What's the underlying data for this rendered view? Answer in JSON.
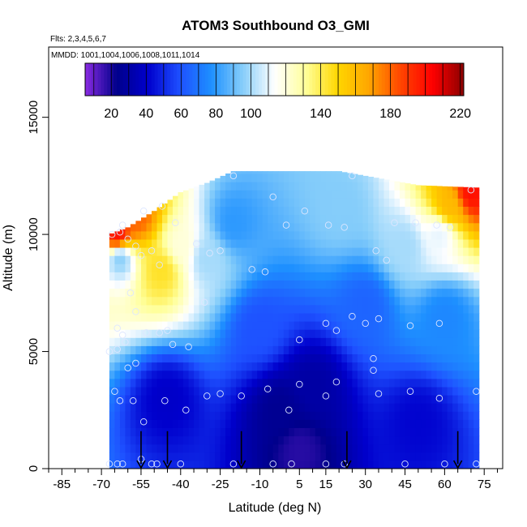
{
  "chart_data": {
    "type": "heatmap",
    "title": "ATOM3 Southbound O3_GMI",
    "subtitle_flights": "Flts: 2,3,4,5,6,7",
    "subtitle_dates": "MMDD: 1001,1004,1006,1008,1011,1014",
    "xlabel": "Latitude (deg N)",
    "ylabel": "Altitude (m)",
    "xlim": [
      -90,
      82
    ],
    "ylim": [
      0,
      18000
    ],
    "x_ticks": [
      -85,
      -70,
      -55,
      -40,
      -25,
      -10,
      5,
      15,
      30,
      45,
      60,
      75
    ],
    "x_tick_labels": [
      "-85",
      "-70",
      "-55",
      "-40",
      "-25",
      "-10",
      "5",
      "15",
      "30",
      "45",
      "60",
      "75"
    ],
    "y_ticks": [
      0,
      5000,
      10000,
      15000
    ],
    "y_tick_labels": [
      "0",
      "5000",
      "10000",
      "15000"
    ],
    "colorbar": {
      "min": 5,
      "max": 222,
      "ticks": [
        20,
        40,
        60,
        80,
        100,
        140,
        180,
        220
      ],
      "tick_labels": [
        "20",
        "40",
        "60",
        "80",
        "100",
        "140",
        "180",
        "220"
      ],
      "colors": [
        "#8a2be2",
        "#00008b",
        "#0000cd",
        "#1e50ff",
        "#1e90ff",
        "#87cefa",
        "#ffffff",
        "#ffff99",
        "#ffd700",
        "#ffa500",
        "#ff4500",
        "#ff0000",
        "#8b0000"
      ]
    },
    "grid": false,
    "data_extent": {
      "lat_min": -67,
      "lat_max": 72,
      "top_altitude": [
        [
          -67,
          10000
        ],
        [
          -60,
          10300
        ],
        [
          -50,
          11000
        ],
        [
          -40,
          11800
        ],
        [
          -30,
          12200
        ],
        [
          -20,
          12700
        ],
        [
          5,
          12700
        ],
        [
          20,
          12700
        ],
        [
          30,
          12500
        ],
        [
          50,
          12100
        ],
        [
          72,
          12000
        ]
      ]
    },
    "field_features": [
      {
        "lat": -64,
        "alt": 10000,
        "value": 200
      },
      {
        "lat": -57,
        "alt": 10800,
        "value": 180
      },
      {
        "lat": -47,
        "alt": 8500,
        "value": 145
      },
      {
        "lat": -40,
        "alt": 9500,
        "value": 120
      },
      {
        "lat": -63,
        "alt": 9000,
        "value": 95
      },
      {
        "lat": -30,
        "alt": 9000,
        "value": 100
      },
      {
        "lat": -20,
        "alt": 10500,
        "value": 80
      },
      {
        "lat": 20,
        "alt": 11000,
        "value": 95
      },
      {
        "lat": 45,
        "alt": 9500,
        "value": 100
      },
      {
        "lat": 58,
        "alt": 10000,
        "value": 110
      },
      {
        "lat": 70,
        "alt": 11800,
        "value": 200
      },
      {
        "lat": 62,
        "alt": 11200,
        "value": 160
      },
      {
        "lat": -10,
        "alt": 6000,
        "value": 60
      },
      {
        "lat": 30,
        "alt": 7000,
        "value": 65
      },
      {
        "lat": 60,
        "alt": 6500,
        "value": 75
      },
      {
        "lat": 5,
        "alt": 800,
        "value": 18
      },
      {
        "lat": -2,
        "alt": 2500,
        "value": 25
      },
      {
        "lat": 10,
        "alt": 3500,
        "value": 30
      },
      {
        "lat": -45,
        "alt": 3000,
        "value": 40
      },
      {
        "lat": 50,
        "alt": 2000,
        "value": 42
      }
    ],
    "observations": [
      [
        -67,
        200
      ],
      [
        -64,
        200
      ],
      [
        -62,
        200
      ],
      [
        -55,
        400
      ],
      [
        -51,
        200
      ],
      [
        -49,
        200
      ],
      [
        -40,
        200
      ],
      [
        -20,
        200
      ],
      [
        -5,
        200
      ],
      [
        2,
        200
      ],
      [
        15,
        200
      ],
      [
        22,
        200
      ],
      [
        45,
        200
      ],
      [
        60,
        200
      ],
      [
        72,
        200
      ],
      [
        -65,
        3300
      ],
      [
        -63,
        2900
      ],
      [
        -58,
        2900
      ],
      [
        -54,
        2000
      ],
      [
        -46,
        2900
      ],
      [
        -38,
        2500
      ],
      [
        -30,
        3100
      ],
      [
        -25,
        3200
      ],
      [
        -17,
        3100
      ],
      [
        -7,
        3400
      ],
      [
        1,
        2500
      ],
      [
        5,
        3600
      ],
      [
        15,
        3100
      ],
      [
        19,
        3700
      ],
      [
        33,
        4200
      ],
      [
        35,
        3200
      ],
      [
        47,
        3300
      ],
      [
        58,
        3000
      ],
      [
        72,
        3300
      ],
      [
        -67,
        5000
      ],
      [
        -64,
        5100
      ],
      [
        -60,
        4300
      ],
      [
        -57,
        4500
      ],
      [
        -61,
        5400
      ],
      [
        -53,
        5800
      ],
      [
        -48,
        5800
      ],
      [
        -43,
        5300
      ],
      [
        -37,
        5200
      ],
      [
        -45,
        5900
      ],
      [
        -31,
        7100
      ],
      [
        5,
        5500
      ],
      [
        15,
        6200
      ],
      [
        19,
        5900
      ],
      [
        25,
        6500
      ],
      [
        30,
        6200
      ],
      [
        33,
        4700
      ],
      [
        35,
        6400
      ],
      [
        47,
        6100
      ],
      [
        58,
        6200
      ],
      [
        -64,
        6000
      ],
      [
        -62,
        5700
      ],
      [
        -57,
        6700
      ],
      [
        -59,
        7500
      ],
      [
        -66,
        10000
      ],
      [
        -63,
        10100
      ],
      [
        -60,
        9800
      ],
      [
        -57,
        9500
      ],
      [
        -55,
        9100
      ],
      [
        -51,
        9300
      ],
      [
        -48,
        8700
      ],
      [
        -42,
        10500
      ],
      [
        -34,
        9600
      ],
      [
        -29,
        9200
      ],
      [
        -25,
        9300
      ],
      [
        -13,
        8500
      ],
      [
        -8,
        8400
      ],
      [
        0,
        10400
      ],
      [
        7,
        11000
      ],
      [
        16,
        10400
      ],
      [
        22,
        10300
      ],
      [
        34,
        9300
      ],
      [
        38,
        8900
      ],
      [
        41,
        10500
      ],
      [
        49,
        10500
      ],
      [
        57,
        10400
      ],
      [
        62,
        10300
      ],
      [
        70,
        11900
      ],
      [
        -54,
        11000
      ],
      [
        -47,
        11200
      ],
      [
        -20,
        12500
      ],
      [
        -5,
        11600
      ],
      [
        25,
        12500
      ],
      [
        -62,
        10400
      ]
    ],
    "flight_arrows": [
      -55,
      -45,
      -17,
      23,
      65
    ]
  }
}
